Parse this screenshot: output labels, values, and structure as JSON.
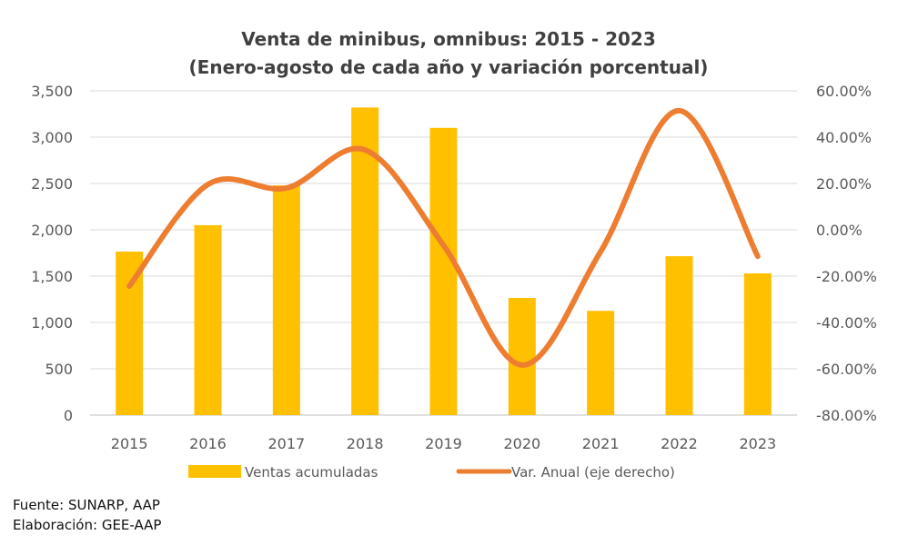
{
  "chart_data": {
    "type": "bar+line",
    "title": "Venta de minibus, omnibus: 2015 - 2023",
    "subtitle": "(Enero-agosto de cada año y variación porcentual)",
    "categories": [
      "2015",
      "2016",
      "2017",
      "2018",
      "2019",
      "2020",
      "2021",
      "2022",
      "2023"
    ],
    "series": [
      {
        "name": "Ventas acumuladas",
        "type": "bar",
        "axis": "left",
        "color": "#FFC000",
        "values": [
          1765,
          2050,
          2480,
          3320,
          3100,
          1265,
          1125,
          1715,
          1530
        ]
      },
      {
        "name": "Var. Anual (eje derecho)",
        "type": "line",
        "axis": "right",
        "smooth": true,
        "color": "#ED7D31",
        "values": [
          -24.3,
          19.6,
          18.0,
          34.5,
          -6.7,
          -58.4,
          -9.4,
          51.4,
          -11.4
        ]
      }
    ],
    "y_left": {
      "ylim": [
        0,
        3500
      ],
      "ticks": [
        0,
        500,
        1000,
        1500,
        2000,
        2500,
        3000,
        3500
      ],
      "tick_labels": [
        "0",
        "500",
        "1,000",
        "1,500",
        "2,000",
        "2,500",
        "3,000",
        "3,500"
      ]
    },
    "y_right": {
      "ylim": [
        -80,
        60
      ],
      "ticks": [
        -80,
        -60,
        -40,
        -20,
        0,
        20,
        40,
        60
      ],
      "tick_labels": [
        "-80.00%",
        "-60.00%",
        "-40.00%",
        "-20.00%",
        "0.00%",
        "20.00%",
        "40.00%",
        "60.00%"
      ]
    },
    "xlabel": "",
    "ylabel": "",
    "grid": true,
    "legend_position": "bottom"
  },
  "footer": {
    "source": "Fuente: SUNARP, AAP",
    "elaboration": "Elaboración: GEE-AAP"
  }
}
